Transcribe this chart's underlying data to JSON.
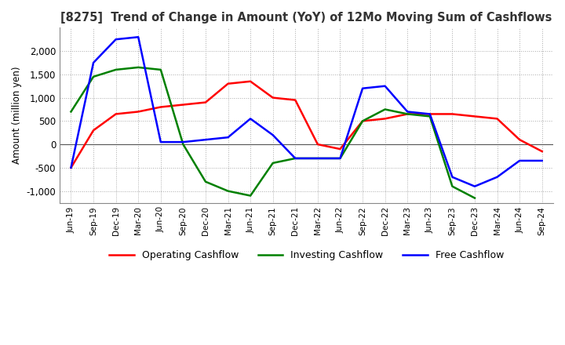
{
  "title": "[8275]  Trend of Change in Amount (YoY) of 12Mo Moving Sum of Cashflows",
  "ylabel": "Amount (million yen)",
  "x_labels": [
    "Jun-19",
    "Sep-19",
    "Dec-19",
    "Mar-20",
    "Jun-20",
    "Sep-20",
    "Dec-20",
    "Mar-21",
    "Jun-21",
    "Sep-21",
    "Dec-21",
    "Mar-22",
    "Jun-22",
    "Sep-22",
    "Dec-22",
    "Mar-23",
    "Jun-23",
    "Sep-23",
    "Dec-23",
    "Mar-24",
    "Jun-24",
    "Sep-24"
  ],
  "operating": [
    -500,
    300,
    650,
    700,
    800,
    850,
    900,
    1300,
    1350,
    1000,
    950,
    0,
    -100,
    500,
    550,
    650,
    650,
    650,
    600,
    550,
    100,
    -150
  ],
  "investing": [
    700,
    1450,
    1600,
    1650,
    1600,
    0,
    -800,
    -1000,
    -1100,
    -400,
    -300,
    -300,
    -300,
    500,
    750,
    650,
    600,
    -900,
    -1150,
    null,
    null,
    null
  ],
  "free": [
    -500,
    1750,
    2250,
    2300,
    50,
    50,
    100,
    150,
    550,
    200,
    -300,
    -300,
    -300,
    1200,
    1250,
    700,
    650,
    -700,
    -900,
    -700,
    -350,
    -350
  ],
  "operating_color": "#ff0000",
  "investing_color": "#008000",
  "free_color": "#0000ff",
  "ylim": [
    -1250,
    2500
  ],
  "yticks": [
    -1000,
    -500,
    0,
    500,
    1000,
    1500,
    2000
  ],
  "background_color": "#ffffff",
  "grid_color": "#aaaaaa"
}
